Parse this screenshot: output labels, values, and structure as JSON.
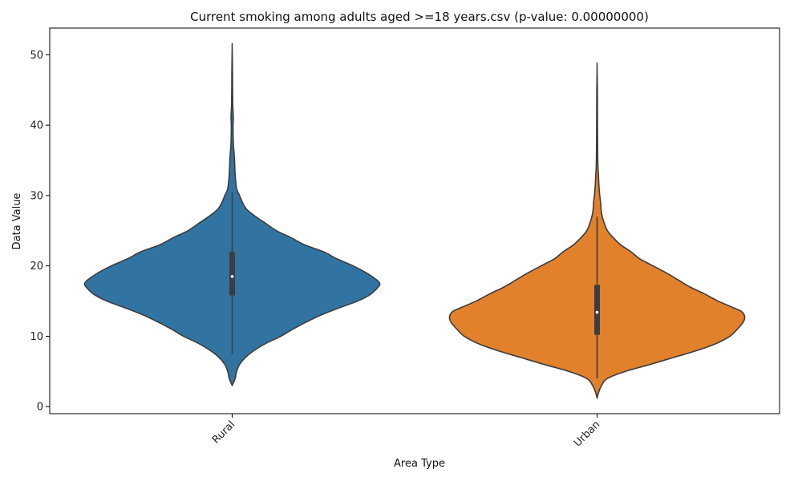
{
  "chart_data": {
    "type": "violin",
    "title": "Current smoking among adults aged >=18 years.csv (p-value: 0.00000000)",
    "xlabel": "Area Type",
    "ylabel": "Data Value",
    "ylim": [
      -1,
      53.8
    ],
    "yticks": [
      0,
      10,
      20,
      30,
      40,
      50
    ],
    "yticks_labels": [
      "0",
      "10",
      "20",
      "30",
      "40",
      "50"
    ],
    "grid": false,
    "legend": "none",
    "categories": [
      "Rural",
      "Urban"
    ],
    "series": [
      {
        "category": "Rural",
        "color": "#3274a1",
        "min": 3.0,
        "max": 51.2,
        "q1": 15.8,
        "median": 18.5,
        "q3": 22.0,
        "whisker_low": 7.5,
        "whisker_high": 30.5,
        "density_profile": [
          [
            3.0,
            0.0
          ],
          [
            4.0,
            0.02
          ],
          [
            5.0,
            0.03
          ],
          [
            6.0,
            0.05
          ],
          [
            7.0,
            0.09
          ],
          [
            8.0,
            0.15
          ],
          [
            9.0,
            0.23
          ],
          [
            10.0,
            0.33
          ],
          [
            11.0,
            0.41
          ],
          [
            12.0,
            0.5
          ],
          [
            13.0,
            0.6
          ],
          [
            14.0,
            0.72
          ],
          [
            15.0,
            0.85
          ],
          [
            16.0,
            0.94
          ],
          [
            17.0,
            0.99
          ],
          [
            17.5,
            1.0
          ],
          [
            18.0,
            0.98
          ],
          [
            19.0,
            0.91
          ],
          [
            20.0,
            0.82
          ],
          [
            21.0,
            0.71
          ],
          [
            22.0,
            0.62
          ],
          [
            23.0,
            0.49
          ],
          [
            24.0,
            0.4
          ],
          [
            25.0,
            0.3
          ],
          [
            26.0,
            0.23
          ],
          [
            27.0,
            0.16
          ],
          [
            28.0,
            0.1
          ],
          [
            29.0,
            0.07
          ],
          [
            30.0,
            0.05
          ],
          [
            31.0,
            0.03
          ],
          [
            33.0,
            0.02
          ],
          [
            35.0,
            0.016
          ],
          [
            36.0,
            0.013
          ],
          [
            37.0,
            0.009
          ],
          [
            38.0,
            0.007
          ],
          [
            40.0,
            0.006
          ],
          [
            41.0,
            0.008
          ],
          [
            42.0,
            0.006
          ],
          [
            43.0,
            0.004
          ],
          [
            45.0,
            0.003
          ],
          [
            48.0,
            0.002
          ],
          [
            51.2,
            0.0
          ]
        ]
      },
      {
        "category": "Urban",
        "color": "#e1812c",
        "min": 1.2,
        "max": 48.4,
        "q1": 10.2,
        "median": 13.4,
        "q3": 17.3,
        "whisker_low": 4.0,
        "whisker_high": 27.0,
        "density_profile": [
          [
            1.2,
            0.0
          ],
          [
            2.0,
            0.01
          ],
          [
            3.0,
            0.03
          ],
          [
            4.0,
            0.07
          ],
          [
            5.0,
            0.19
          ],
          [
            6.0,
            0.36
          ],
          [
            7.0,
            0.52
          ],
          [
            8.0,
            0.68
          ],
          [
            9.0,
            0.81
          ],
          [
            10.0,
            0.9
          ],
          [
            11.0,
            0.95
          ],
          [
            12.0,
            0.99
          ],
          [
            12.8,
            1.0
          ],
          [
            13.5,
            0.98
          ],
          [
            14.0,
            0.93
          ],
          [
            15.0,
            0.82
          ],
          [
            16.0,
            0.73
          ],
          [
            17.0,
            0.63
          ],
          [
            18.0,
            0.55
          ],
          [
            19.0,
            0.47
          ],
          [
            20.0,
            0.38
          ],
          [
            21.0,
            0.29
          ],
          [
            22.0,
            0.23
          ],
          [
            23.0,
            0.16
          ],
          [
            24.0,
            0.11
          ],
          [
            25.0,
            0.07
          ],
          [
            26.0,
            0.05
          ],
          [
            27.0,
            0.035
          ],
          [
            28.0,
            0.027
          ],
          [
            29.0,
            0.024
          ],
          [
            30.0,
            0.018
          ],
          [
            31.0,
            0.014
          ],
          [
            32.0,
            0.011
          ],
          [
            33.0,
            0.009
          ],
          [
            34.0,
            0.006
          ],
          [
            36.0,
            0.004
          ],
          [
            40.0,
            0.003
          ],
          [
            45.0,
            0.002
          ],
          [
            48.4,
            0.0
          ]
        ]
      }
    ]
  }
}
